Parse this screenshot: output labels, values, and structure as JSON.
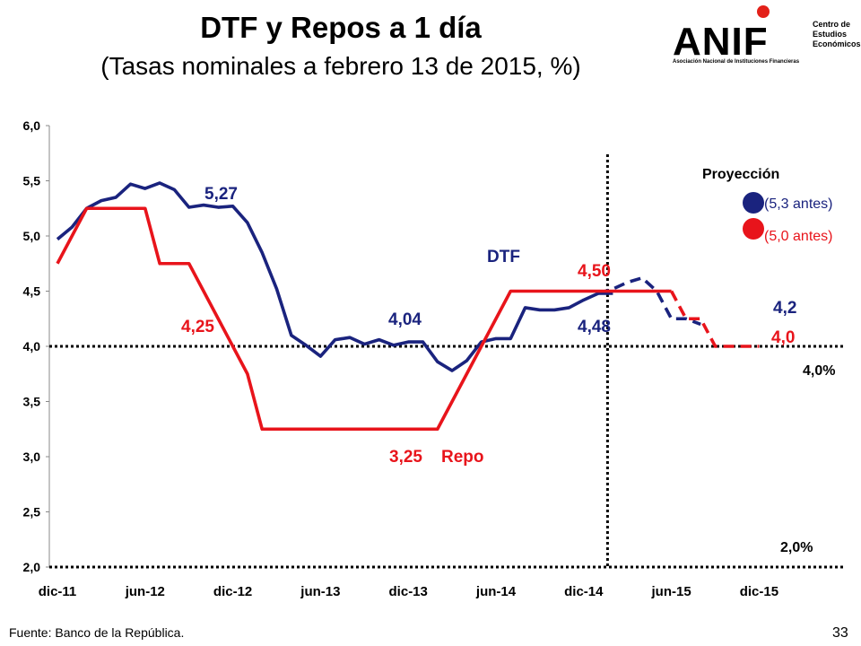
{
  "title": "DTF y Repos a 1 día",
  "subtitle": "(Tasas nominales a febrero 13 de 2015, %)",
  "logo": {
    "word": "ANIF",
    "side": "Centro de Estudios Económicos",
    "sub": "Asociación Nacional de Instituciones Financieras"
  },
  "source": "Fuente: Banco de la República.",
  "page_number": "33",
  "colors": {
    "dtf": "#1a237e",
    "repo": "#e8141b"
  },
  "chart_data": {
    "type": "line",
    "ylim": [
      2.0,
      6.0
    ],
    "yticks": [
      2.0,
      2.5,
      3.0,
      3.5,
      4.0,
      4.5,
      5.0,
      5.5,
      6.0
    ],
    "ytick_labels": [
      "2,0",
      "2,5",
      "3,0",
      "3,5",
      "4,0",
      "4,5",
      "5,0",
      "5,5",
      "6,0"
    ],
    "x_tick_labels": [
      "dic-11",
      "jun-12",
      "dic-12",
      "jun-13",
      "dic-13",
      "jun-14",
      "dic-14",
      "jun-15",
      "dic-15"
    ],
    "x_tick_index": [
      0,
      6,
      12,
      18,
      24,
      30,
      36,
      42,
      48
    ],
    "x_range": [
      0,
      48
    ],
    "forecast_start_index": 38,
    "series": [
      {
        "name": "DTF",
        "values": [
          4.97,
          5.08,
          5.25,
          5.32,
          5.35,
          5.47,
          5.43,
          5.48,
          5.42,
          5.26,
          5.28,
          5.26,
          5.27,
          5.12,
          4.85,
          4.52,
          4.1,
          4.01,
          3.91,
          4.06,
          4.08,
          4.02,
          4.06,
          4.01,
          4.04,
          4.04,
          3.86,
          3.78,
          3.87,
          4.04,
          4.07,
          4.07,
          4.35,
          4.33,
          4.33,
          4.35,
          4.42,
          4.48,
          4.48
        ],
        "projection": [
          4.48,
          4.52,
          4.58,
          4.62,
          4.5,
          4.25,
          4.25,
          4.2
        ],
        "projection_start_index": 37
      },
      {
        "name": "Repo",
        "values": [
          4.75,
          5.0,
          5.25,
          5.25,
          5.25,
          5.25,
          5.25,
          4.75,
          4.75,
          4.75,
          4.5,
          4.25,
          4.0,
          3.75,
          3.25,
          3.25,
          3.25,
          3.25,
          3.25,
          3.25,
          3.25,
          3.25,
          3.25,
          3.25,
          3.25,
          3.25,
          3.25,
          3.5,
          3.75,
          4.0,
          4.25,
          4.5,
          4.5,
          4.5,
          4.5,
          4.5,
          4.5,
          4.5,
          4.5,
          4.5,
          4.5,
          4.5,
          4.5
        ],
        "projection": [
          4.5,
          4.25,
          4.25,
          4.0,
          4.0,
          4.0,
          4.0
        ],
        "projection_start_index": 42
      }
    ],
    "reference_lines": [
      {
        "value": 4.0,
        "label": "4,0%"
      },
      {
        "value": 2.0,
        "label": "2,0%"
      }
    ],
    "annotations": {
      "dtf_527": "5,27",
      "dtf_404": "4,04",
      "dtf_448": "4,48",
      "dtf_42": "4,2",
      "dtf_name": "DTF",
      "repo_425": "4,25",
      "repo_325": "3,25",
      "repo_name": "Repo",
      "repo_450": "4,50",
      "repo_40": "4,0"
    },
    "legend": {
      "title": "Proyección",
      "dtf_prev": "(5,3 antes)",
      "repo_prev": "(5,0 antes)"
    }
  }
}
